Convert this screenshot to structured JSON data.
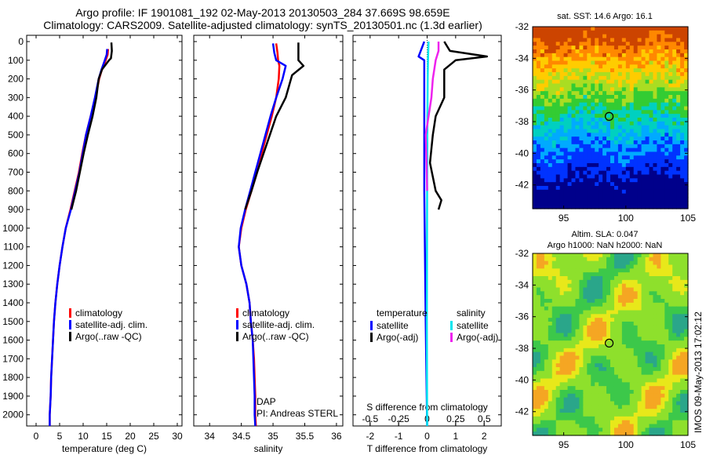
{
  "header": {
    "line1": "Argo profile: IF 1901081_192 02-May-2013 20130503_284 37.669S 98.659E",
    "line2": "Climatology: CARS2009. Satellite-adjusted climatology: synTS_20130501.nc (1.3d earlier)"
  },
  "colors": {
    "climatology": "#ff0000",
    "satellite": "#0000ff",
    "argo": "#000000",
    "sal_satellite": "#00e5ee",
    "sal_argo": "#ee22ee"
  },
  "chart_data": [
    {
      "type": "line",
      "panel": "temperature",
      "xlabel": "temperature (deg C)",
      "xlim": [
        -2,
        31
      ],
      "xticks": [
        "0",
        "5",
        "10",
        "15",
        "20",
        "25",
        "30"
      ],
      "ylim": [
        2060,
        0
      ],
      "yticks": [
        "0",
        "100",
        "200",
        "300",
        "400",
        "500",
        "600",
        "700",
        "800",
        "900",
        "1000",
        "1100",
        "1200",
        "1300",
        "1400",
        "1500",
        "1600",
        "1700",
        "1800",
        "1900",
        "2000"
      ],
      "legend": [
        "climatology",
        "satellite-adj. clim.",
        "Argo(..raw -QC)"
      ],
      "series": [
        {
          "name": "climatology",
          "color": "#ff0000",
          "points": [
            [
              15.3,
              40
            ],
            [
              15.2,
              70
            ],
            [
              14.8,
              100
            ],
            [
              14.0,
              150
            ],
            [
              13.4,
              200
            ],
            [
              12.6,
              300
            ],
            [
              11.6,
              400
            ],
            [
              10.6,
              500
            ],
            [
              9.8,
              600
            ],
            [
              9.1,
              700
            ],
            [
              8.2,
              800
            ],
            [
              7.3,
              900
            ],
            [
              6.3,
              1000
            ],
            [
              5.6,
              1100
            ],
            [
              5.0,
              1200
            ],
            [
              4.5,
              1300
            ],
            [
              4.1,
              1400
            ],
            [
              3.8,
              1500
            ],
            [
              3.6,
              1600
            ],
            [
              3.4,
              1700
            ],
            [
              3.2,
              1800
            ],
            [
              3.1,
              1900
            ],
            [
              2.9,
              2000
            ],
            [
              2.9,
              2060
            ]
          ]
        },
        {
          "name": "satellite-adj. clim.",
          "color": "#0000ff",
          "points": [
            [
              15.1,
              40
            ],
            [
              15.0,
              70
            ],
            [
              14.6,
              100
            ],
            [
              13.9,
              150
            ],
            [
              13.3,
              200
            ],
            [
              12.5,
              300
            ],
            [
              11.6,
              400
            ],
            [
              10.6,
              500
            ],
            [
              9.9,
              600
            ],
            [
              9.2,
              700
            ],
            [
              8.3,
              800
            ],
            [
              7.4,
              900
            ],
            [
              6.3,
              1000
            ],
            [
              5.6,
              1100
            ],
            [
              5.0,
              1200
            ],
            [
              4.5,
              1300
            ],
            [
              4.1,
              1400
            ],
            [
              3.8,
              1500
            ],
            [
              3.6,
              1600
            ],
            [
              3.4,
              1700
            ],
            [
              3.2,
              1800
            ],
            [
              3.1,
              1900
            ],
            [
              2.9,
              2000
            ],
            [
              2.9,
              2060
            ]
          ]
        },
        {
          "name": "Argo(..raw -QC)",
          "color": "#000000",
          "points": [
            [
              16.0,
              5
            ],
            [
              16.1,
              50
            ],
            [
              15.9,
              90
            ],
            [
              15.5,
              100
            ],
            [
              14.0,
              150
            ],
            [
              13.3,
              200
            ],
            [
              12.8,
              300
            ],
            [
              12.0,
              400
            ],
            [
              11.0,
              500
            ],
            [
              10.1,
              600
            ],
            [
              9.3,
              700
            ],
            [
              8.5,
              800
            ],
            [
              7.5,
              900
            ]
          ]
        }
      ]
    },
    {
      "type": "line",
      "panel": "salinity",
      "xlabel": "salinity",
      "xlim": [
        33.75,
        36.1
      ],
      "xticks": [
        "34",
        "34.5",
        "35",
        "35.5",
        "36"
      ],
      "ylim": [
        2060,
        0
      ],
      "legend": [
        "climatology",
        "satellite-adj. clim.",
        "Argo(..raw -QC)"
      ],
      "annotation": [
        "DAP",
        "PI: Andreas STERL"
      ],
      "series": [
        {
          "name": "climatology",
          "color": "#ff0000",
          "points": [
            [
              35.05,
              10
            ],
            [
              35.07,
              60
            ],
            [
              35.08,
              100
            ],
            [
              35.1,
              130
            ],
            [
              35.09,
              200
            ],
            [
              35.05,
              300
            ],
            [
              34.98,
              400
            ],
            [
              34.9,
              500
            ],
            [
              34.82,
              600
            ],
            [
              34.75,
              700
            ],
            [
              34.66,
              800
            ],
            [
              34.57,
              900
            ],
            [
              34.5,
              1000
            ],
            [
              34.46,
              1100
            ],
            [
              34.5,
              1200
            ],
            [
              34.58,
              1300
            ],
            [
              34.63,
              1400
            ],
            [
              34.65,
              1500
            ],
            [
              34.68,
              1600
            ],
            [
              34.7,
              1700
            ],
            [
              34.71,
              1800
            ],
            [
              34.72,
              1900
            ],
            [
              34.72,
              2000
            ],
            [
              34.73,
              2060
            ]
          ]
        },
        {
          "name": "satellite-adj. clim.",
          "color": "#0000ff",
          "points": [
            [
              35.0,
              10
            ],
            [
              35.02,
              60
            ],
            [
              35.05,
              100
            ],
            [
              35.2,
              130
            ],
            [
              35.15,
              200
            ],
            [
              35.05,
              300
            ],
            [
              34.96,
              400
            ],
            [
              34.88,
              500
            ],
            [
              34.8,
              600
            ],
            [
              34.72,
              700
            ],
            [
              34.64,
              800
            ],
            [
              34.56,
              900
            ],
            [
              34.49,
              1000
            ],
            [
              34.46,
              1100
            ],
            [
              34.5,
              1200
            ],
            [
              34.58,
              1300
            ],
            [
              34.63,
              1400
            ],
            [
              34.65,
              1500
            ],
            [
              34.68,
              1600
            ],
            [
              34.69,
              1700
            ],
            [
              34.7,
              1800
            ],
            [
              34.71,
              1900
            ],
            [
              34.71,
              2000
            ],
            [
              34.72,
              2060
            ]
          ]
        },
        {
          "name": "Argo(..raw -QC)",
          "color": "#000000",
          "points": [
            [
              35.4,
              5
            ],
            [
              35.4,
              100
            ],
            [
              35.48,
              130
            ],
            [
              35.3,
              180
            ],
            [
              35.2,
              300
            ],
            [
              35.05,
              400
            ],
            [
              34.95,
              500
            ],
            [
              34.85,
              600
            ],
            [
              34.75,
              700
            ],
            [
              34.66,
              800
            ],
            [
              34.56,
              900
            ]
          ]
        }
      ]
    },
    {
      "type": "line",
      "panel": "differences",
      "xlabel": "T difference from climatology",
      "xlabel_top": "S difference from climatology",
      "xlim": [
        -2.6,
        2.6
      ],
      "xticks": [
        "-2",
        "-1",
        "0",
        "1",
        "2"
      ],
      "xticks_top": [
        "-0.5",
        "-0.25",
        "0",
        "0.25",
        "0.5"
      ],
      "ylim": [
        2060,
        0
      ],
      "legend": [
        {
          "group": "temperature",
          "items": [
            "satellite",
            "Argo(-adj)"
          ]
        },
        {
          "group": "salinity",
          "items": [
            "satellite",
            "Argo(-adj)"
          ]
        }
      ],
      "series": [
        {
          "name": "temperature satellite",
          "color": "#0000ff",
          "points": [
            [
              -0.1,
              0
            ],
            [
              -0.2,
              40
            ],
            [
              -0.3,
              80
            ],
            [
              -0.1,
              100
            ],
            [
              -0.1,
              200
            ],
            [
              -0.1,
              300
            ],
            [
              -0.1,
              400
            ],
            [
              -0.1,
              800
            ],
            [
              -0.05,
              1500
            ],
            [
              0,
              2060
            ]
          ]
        },
        {
          "name": "temperature Argo(-adj)",
          "color": "#000000",
          "points": [
            [
              0.6,
              0
            ],
            [
              0.8,
              50
            ],
            [
              2.1,
              80
            ],
            [
              1.0,
              100
            ],
            [
              0.6,
              150
            ],
            [
              0.6,
              300
            ],
            [
              0.3,
              400
            ],
            [
              0.2,
              500
            ],
            [
              0.1,
              650
            ],
            [
              0.3,
              800
            ],
            [
              0.5,
              850
            ],
            [
              0.4,
              900
            ]
          ]
        },
        {
          "name": "salinity satellite",
          "color": "#00e5ee",
          "points": [
            [
              0.05,
              0
            ],
            [
              0.03,
              100
            ],
            [
              0.02,
              200
            ],
            [
              0.01,
              400
            ],
            [
              0.0,
              800
            ],
            [
              -0.01,
              1500
            ],
            [
              0,
              2060
            ]
          ]
        },
        {
          "name": "salinity Argo(-adj)",
          "color": "#ee22ee",
          "points": [
            [
              0.4,
              0
            ],
            [
              0.4,
              50
            ],
            [
              0.3,
              100
            ],
            [
              0.2,
              200
            ],
            [
              0.15,
              300
            ],
            [
              0.05,
              400
            ],
            [
              -0.05,
              500
            ],
            [
              -0.02,
              650
            ],
            [
              0.0,
              800
            ]
          ]
        }
      ]
    }
  ],
  "maps": {
    "sst": {
      "title": "sat. SST: 14.6  Argo: 16.1",
      "yticks": [
        "-32",
        "-34",
        "-36",
        "-38",
        "-40",
        "-42"
      ],
      "xticks": [
        "95",
        "100",
        "105"
      ],
      "marker": [
        98.66,
        -37.67
      ]
    },
    "sla": {
      "title_line1": "Altim. SLA: 0.047",
      "title_line2": "Argo h1000: NaN  h2000: NaN",
      "yticks": [
        "-32",
        "-34",
        "-36",
        "-38",
        "-40",
        "-42"
      ],
      "xticks": [
        "95",
        "100",
        "105"
      ],
      "marker": [
        98.66,
        -37.67
      ]
    }
  },
  "footer": "IMOS 09-May-2013 17:02:12"
}
